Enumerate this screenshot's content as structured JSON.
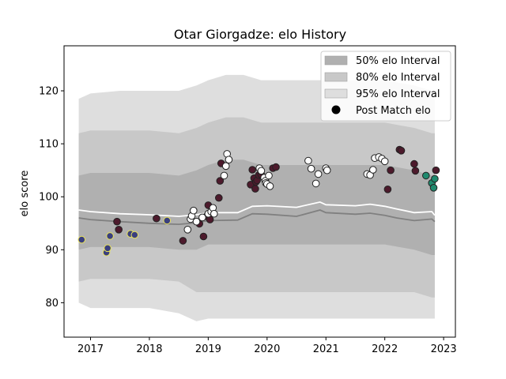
{
  "chart_data": {
    "type": "scatter",
    "title": "Otar Giorgadze: elo History",
    "xlabel": "",
    "ylabel": "elo score",
    "xlim": [
      2016.55,
      2023.2
    ],
    "ylim": [
      73.5,
      128.5
    ],
    "x_ticks": [
      2017,
      2018,
      2019,
      2020,
      2021,
      2022,
      2023
    ],
    "y_ticks": [
      80,
      90,
      100,
      110,
      120
    ],
    "legend_position": "top-right",
    "grid": false,
    "legend": [
      {
        "label": "50% elo Interval",
        "kind": "band",
        "color": "#b0b0b0"
      },
      {
        "label": "80% elo Interval",
        "kind": "band",
        "color": "#c8c8c8"
      },
      {
        "label": "95% elo Interval",
        "kind": "band",
        "color": "#dedede"
      },
      {
        "label": "Post Match elo",
        "kind": "marker",
        "color": "#000000"
      }
    ],
    "bands": {
      "x": [
        2016.8,
        2017.0,
        2017.5,
        2018.0,
        2018.5,
        2018.8,
        2019.0,
        2019.3,
        2019.6,
        2019.9,
        2020.0,
        2020.5,
        2020.8,
        2021.0,
        2021.5,
        2021.8,
        2022.0,
        2022.5,
        2022.8,
        2022.85
      ],
      "p95_upper": [
        118.5,
        119.5,
        120,
        120,
        120,
        121,
        122,
        123,
        123,
        122,
        122,
        122,
        122,
        122,
        122,
        122,
        122,
        121,
        120,
        120
      ],
      "p80_upper": [
        112,
        112.5,
        112.5,
        112.5,
        112,
        113,
        114,
        115,
        115,
        114,
        114,
        114,
        114,
        114,
        114,
        114,
        114,
        113,
        112,
        112
      ],
      "p50_upper": [
        104,
        104.5,
        104.5,
        104.5,
        104,
        105,
        106,
        107,
        107,
        106,
        106,
        106,
        106,
        106,
        106,
        106,
        106,
        105,
        104,
        104
      ],
      "p50_lower": [
        90,
        90.5,
        90.5,
        90.5,
        90,
        90,
        91,
        91,
        91,
        91,
        91,
        91,
        91,
        91,
        91,
        91,
        91,
        90,
        89,
        89
      ],
      "p80_lower": [
        84,
        84.5,
        84.5,
        84.5,
        84,
        82,
        82,
        82,
        82,
        82,
        82,
        82,
        82,
        82,
        82,
        82,
        82,
        82,
        81,
        81
      ],
      "p95_lower": [
        80,
        79,
        79,
        79,
        78,
        76.5,
        77,
        77,
        77,
        77,
        77,
        77,
        77,
        77,
        77,
        77,
        77,
        77,
        77,
        77
      ]
    },
    "mean_line": {
      "color": "#ffffff",
      "x": [
        2016.8,
        2017.0,
        2017.5,
        2018.0,
        2018.5,
        2018.8,
        2019.0,
        2019.5,
        2019.75,
        2020.0,
        2020.5,
        2020.9,
        2021.0,
        2021.5,
        2021.75,
        2022.0,
        2022.2,
        2022.5,
        2022.8,
        2022.85
      ],
      "y": [
        97.5,
        97.2,
        96.8,
        96.6,
        96.3,
        96.6,
        97.0,
        97.0,
        98.2,
        98.3,
        98.0,
        99.0,
        98.5,
        98.3,
        98.6,
        98.2,
        97.7,
        97.0,
        97.2,
        96.5
      ]
    },
    "median_line": {
      "color": "#808080",
      "x": [
        2016.8,
        2017.0,
        2017.5,
        2018.0,
        2018.5,
        2018.8,
        2019.0,
        2019.5,
        2019.75,
        2020.0,
        2020.5,
        2020.9,
        2021.0,
        2021.5,
        2021.75,
        2022.0,
        2022.2,
        2022.5,
        2022.8,
        2022.85
      ],
      "y": [
        96.0,
        95.7,
        95.3,
        95.0,
        94.8,
        95.1,
        95.5,
        95.6,
        96.8,
        96.7,
        96.3,
        97.5,
        97.0,
        96.7,
        96.9,
        96.5,
        96.0,
        95.5,
        95.8,
        95.3
      ]
    },
    "series": [
      {
        "fill": "#3a3f7f",
        "edge": "#e8e25a",
        "x": [
          2016.85,
          2017.27,
          2017.29,
          2017.33,
          2017.68,
          2017.75,
          2018.3
        ],
        "y": [
          91.9,
          89.5,
          90.3,
          92.6,
          93.0,
          92.8,
          95.5
        ]
      },
      {
        "fill": "#4d1a2c",
        "edge": "#222222",
        "x": [
          2017.45,
          2017.48,
          2018.12,
          2018.57,
          2018.85,
          2018.92,
          2018.97,
          2019.0,
          2019.03,
          2019.18,
          2019.2,
          2019.22,
          2019.72,
          2019.75,
          2019.78,
          2019.8,
          2019.81,
          2019.83,
          2019.86,
          2019.9,
          2020.1,
          2020.15,
          2022.25,
          2022.28,
          2022.05,
          2022.1,
          2022.5,
          2022.52,
          2022.87
        ],
        "y": [
          95.3,
          93.8,
          95.9,
          91.7,
          94.9,
          92.5,
          96.3,
          98.4,
          95.7,
          99.8,
          103.0,
          106.3,
          102.3,
          105.1,
          103.5,
          101.5,
          102.8,
          103.1,
          104.1,
          104.2,
          105.4,
          105.6,
          108.9,
          108.7,
          101.4,
          105.0,
          106.2,
          104.9,
          105.0
        ]
      },
      {
        "fill": "#ffffff",
        "edge": "#222222",
        "x": [
          2018.65,
          2018.7,
          2018.72,
          2018.75,
          2018.8,
          2018.9,
          2019.0,
          2019.05,
          2019.08,
          2019.1,
          2019.27,
          2019.3,
          2019.32,
          2019.35,
          2019.87,
          2019.9,
          2019.95,
          2019.97,
          2019.98,
          2020.0,
          2020.03,
          2020.05,
          2020.7,
          2020.75,
          2020.83,
          2020.87,
          2021.0,
          2021.02,
          2021.7,
          2021.75,
          2021.8,
          2021.83,
          2021.9,
          2021.95,
          2022.0
        ],
        "y": [
          93.8,
          95.8,
          96.4,
          97.4,
          95.3,
          96.1,
          96.8,
          97.2,
          97.9,
          96.8,
          104.0,
          105.8,
          108.1,
          107.0,
          105.4,
          104.9,
          103.6,
          103.0,
          102.6,
          102.4,
          104.0,
          102.0,
          106.8,
          105.3,
          102.5,
          104.3,
          105.4,
          105.0,
          104.3,
          104.1,
          105.1,
          107.3,
          107.5,
          107.2,
          106.7
        ]
      },
      {
        "fill": "#1f8a6e",
        "edge": "#222222",
        "x": [
          2022.7,
          2022.8,
          2022.83,
          2022.85
        ],
        "y": [
          104.0,
          102.6,
          101.7,
          103.4
        ]
      }
    ]
  }
}
